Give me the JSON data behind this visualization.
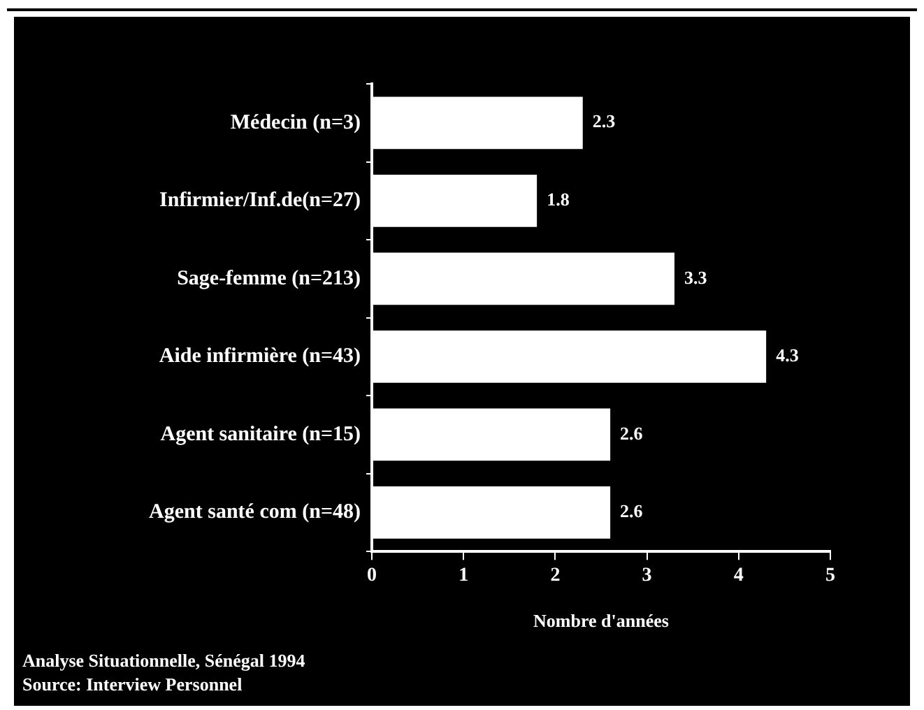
{
  "chart_data": {
    "type": "bar",
    "orientation": "horizontal",
    "categories": [
      "Médecin (n=3)",
      "Infirmier/Inf.de(n=27)",
      "Sage-femme (n=213)",
      "Aide infirmière (n=43)",
      "Agent sanitaire (n=15)",
      "Agent santé com (n=48)"
    ],
    "values": [
      2.3,
      1.8,
      3.3,
      4.3,
      2.6,
      2.6
    ],
    "color": "#ffffff",
    "data_labels": true,
    "xlim": [
      0,
      5
    ],
    "xticks": [
      0,
      1,
      2,
      3,
      4,
      5
    ],
    "xlabel": "Nombre d'années",
    "grid": false,
    "legend": false,
    "annotations": [
      "Analyse Situationnelle, Sénégal 1994",
      "Source: Interview Personnel"
    ]
  }
}
